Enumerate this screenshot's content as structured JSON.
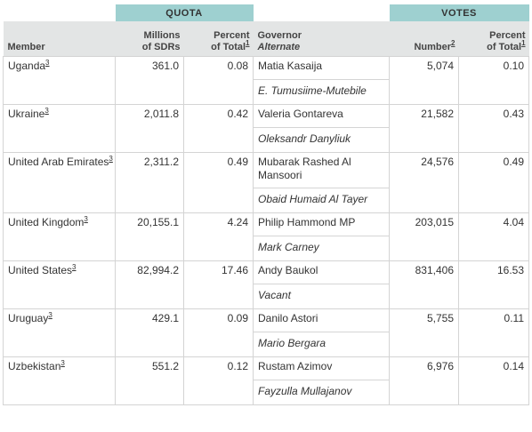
{
  "header": {
    "quota_group": "QUOTA",
    "votes_group": "VOTES",
    "member": "Member",
    "millions_line1": "Millions",
    "millions_line2": "of SDRs",
    "pct_line1": "Percent",
    "pct_line2": "of Total",
    "governor": "Governor",
    "alternate": "Alternate",
    "number": "Number",
    "vote_pct_line1": "Percent",
    "vote_pct_line2": "of Total",
    "fn1": "1",
    "fn2": "2"
  },
  "rows": [
    {
      "member": "Uganda",
      "member_fn": "3",
      "millions": "361.0",
      "pct": "0.08",
      "governor": "Matia Kasaija",
      "alternate": "E. Tumusiime-Mutebile",
      "votes": "5,074",
      "votes_pct": "0.10"
    },
    {
      "member": "Ukraine",
      "member_fn": "3",
      "millions": "2,011.8",
      "pct": "0.42",
      "governor": "Valeria Gontareva",
      "alternate": "Oleksandr Danyliuk",
      "votes": "21,582",
      "votes_pct": "0.43"
    },
    {
      "member": "United Arab Emirates",
      "member_fn": "3",
      "millions": "2,311.2",
      "pct": "0.49",
      "governor": "Mubarak Rashed Al Mansoori",
      "alternate": "Obaid Humaid Al Tayer",
      "votes": "24,576",
      "votes_pct": "0.49"
    },
    {
      "member": "United Kingdom",
      "member_fn": "3",
      "millions": "20,155.1",
      "pct": "4.24",
      "governor": "Philip Hammond MP",
      "alternate": "Mark Carney",
      "votes": "203,015",
      "votes_pct": "4.04"
    },
    {
      "member": "United States",
      "member_fn": "3",
      "millions": "82,994.2",
      "pct": "17.46",
      "governor": "Andy Baukol",
      "alternate": "Vacant",
      "votes": "831,406",
      "votes_pct": "16.53"
    },
    {
      "member": "Uruguay",
      "member_fn": "3",
      "millions": "429.1",
      "pct": "0.09",
      "governor": "Danilo Astori",
      "alternate": "Mario Bergara",
      "votes": "5,755",
      "votes_pct": "0.11"
    },
    {
      "member": "Uzbekistan",
      "member_fn": "3",
      "millions": "551.2",
      "pct": "0.12",
      "governor": "Rustam Azimov",
      "alternate": "Fayzulla Mullajanov",
      "votes": "6,976",
      "votes_pct": "0.14"
    }
  ]
}
